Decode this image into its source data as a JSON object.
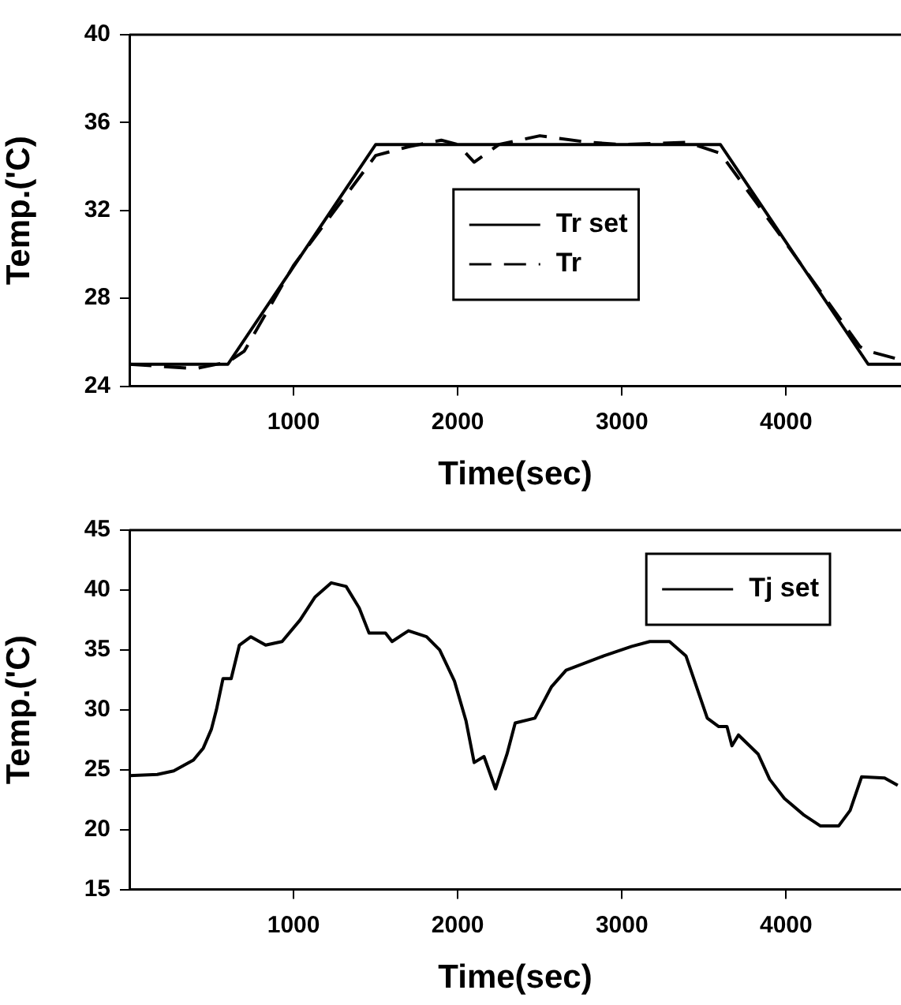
{
  "chart_data": [
    {
      "type": "line",
      "xlabel": "Time(sec)",
      "ylabel": "Temp.('C)",
      "xlim": [
        0,
        4700
      ],
      "xticks": [
        1000,
        2000,
        3000,
        4000
      ],
      "ylim": [
        24,
        40
      ],
      "yticks": [
        24,
        28,
        32,
        36,
        40
      ],
      "legend": "center",
      "marker": "none",
      "grid": false,
      "series": [
        {
          "name": "Tr set",
          "color": "#000000",
          "line_style": "solid",
          "x": [
            0,
            600,
            1500,
            3600,
            4500,
            4700
          ],
          "values": [
            25,
            25,
            35,
            35,
            25,
            25
          ]
        },
        {
          "name": "Tr",
          "color": "#000000",
          "line_style": "dashed",
          "x": [
            0,
            200,
            400,
            600,
            700,
            1000,
            1500,
            1700,
            1900,
            2000,
            2100,
            2250,
            2500,
            2600,
            2800,
            3000,
            3400,
            3600,
            4000,
            4450,
            4500,
            4700
          ],
          "values": [
            25,
            24.9,
            24.8,
            25.1,
            25.6,
            29.5,
            34.5,
            34.9,
            35.2,
            35,
            34.2,
            35,
            35.4,
            35.3,
            35.1,
            35,
            35.1,
            34.6,
            30.5,
            25.8,
            25.6,
            25.2
          ]
        }
      ]
    },
    {
      "type": "line",
      "xlabel": "Time(sec)",
      "ylabel": "Temp.('C)",
      "xlim": [
        0,
        4700
      ],
      "xticks": [
        1000,
        2000,
        3000,
        4000
      ],
      "ylim": [
        15,
        45
      ],
      "yticks": [
        15,
        20,
        25,
        30,
        35,
        40,
        45
      ],
      "legend": "top right",
      "marker": "none",
      "grid": false,
      "series": [
        {
          "name": "Tj set",
          "color": "#000000",
          "line_style": "solid",
          "x": [
            0,
            170,
            270,
            390,
            450,
            500,
            530,
            570,
            620,
            670,
            740,
            830,
            930,
            1040,
            1130,
            1230,
            1320,
            1400,
            1460,
            1560,
            1600,
            1700,
            1810,
            1890,
            1980,
            2050,
            2100,
            2160,
            2230,
            2300,
            2350,
            2470,
            2570,
            2660,
            2890,
            3060,
            3170,
            3290,
            3390,
            3520,
            3590,
            3640,
            3670,
            3710,
            3830,
            3900,
            3990,
            4110,
            4210,
            4320,
            4390,
            4460,
            4600,
            4680
          ],
          "values": [
            24.5,
            24.6,
            24.9,
            25.8,
            26.8,
            28.4,
            30,
            32.6,
            32.6,
            35.4,
            36.1,
            35.4,
            35.7,
            37.5,
            39.4,
            40.6,
            40.3,
            38.5,
            36.4,
            36.4,
            35.7,
            36.6,
            36.1,
            35,
            32.4,
            29.1,
            25.6,
            26.1,
            23.4,
            26.3,
            28.9,
            29.3,
            31.9,
            33.3,
            34.5,
            35.3,
            35.7,
            35.7,
            34.5,
            29.3,
            28.6,
            28.6,
            27,
            27.9,
            26.3,
            24.2,
            22.6,
            21.2,
            20.3,
            20.3,
            21.6,
            24.4,
            24.3,
            23.7
          ]
        }
      ]
    }
  ]
}
